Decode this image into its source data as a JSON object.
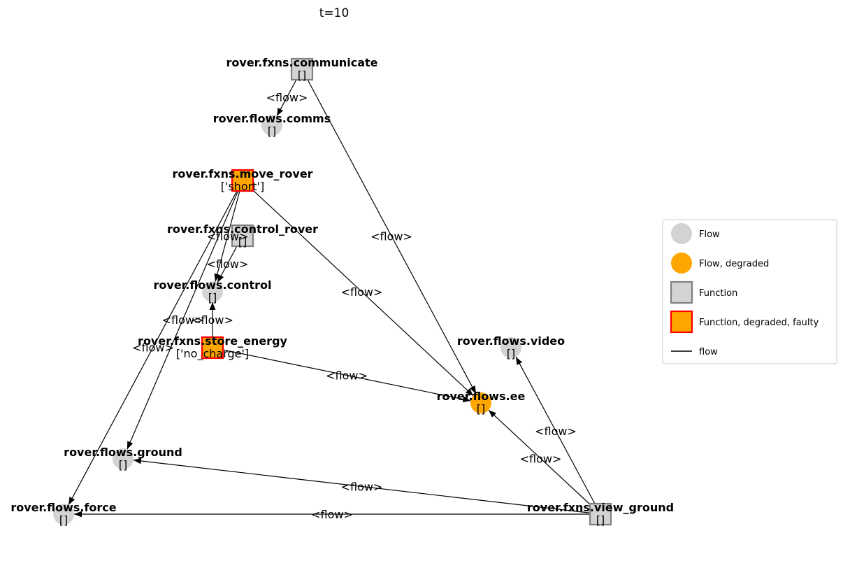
{
  "title": "t=10",
  "legend": {
    "position": "right",
    "items": [
      {
        "id": "flow",
        "label": "Flow",
        "shape": "circle",
        "fill": "#d3d3d3",
        "stroke": "none"
      },
      {
        "id": "flow-degraded",
        "label": "Flow, degraded",
        "shape": "circle",
        "fill": "#ffa500",
        "stroke": "none"
      },
      {
        "id": "function",
        "label": "Function",
        "shape": "square",
        "fill": "#d3d3d3",
        "stroke": "#808080"
      },
      {
        "id": "function-degraded-faulty",
        "label": "Function, degraded, faulty",
        "shape": "square",
        "fill": "#ffa500",
        "stroke": "#ff0000"
      },
      {
        "id": "flow-edge",
        "label": "flow",
        "shape": "line",
        "fill": "none",
        "stroke": "#000000"
      }
    ]
  },
  "nodes": [
    {
      "id": "communicate",
      "label": "rover.fxns.communicate",
      "state": "[]",
      "kind": "function",
      "status": "nominal"
    },
    {
      "id": "comms",
      "label": "rover.flows.comms",
      "state": "[]",
      "kind": "flow",
      "status": "nominal"
    },
    {
      "id": "move_rover",
      "label": "rover.fxns.move_rover",
      "state": "['short']",
      "kind": "function",
      "status": "faulty"
    },
    {
      "id": "control_rover",
      "label": "rover.fxns.control_rover",
      "state": "[]",
      "kind": "function",
      "status": "nominal"
    },
    {
      "id": "control",
      "label": "rover.flows.control",
      "state": "[]",
      "kind": "flow",
      "status": "nominal"
    },
    {
      "id": "store_energy",
      "label": "rover.fxns.store_energy",
      "state": "['no_charge']",
      "kind": "function",
      "status": "faulty"
    },
    {
      "id": "video",
      "label": "rover.flows.video",
      "state": "[]",
      "kind": "flow",
      "status": "nominal"
    },
    {
      "id": "ee",
      "label": "rover.flows.ee",
      "state": "[]",
      "kind": "flow",
      "status": "degraded"
    },
    {
      "id": "ground",
      "label": "rover.flows.ground",
      "state": "[]",
      "kind": "flow",
      "status": "nominal"
    },
    {
      "id": "force",
      "label": "rover.flows.force",
      "state": "[]",
      "kind": "flow",
      "status": "nominal"
    },
    {
      "id": "view_ground",
      "label": "rover.fxns.view_ground",
      "state": "[]",
      "kind": "function",
      "status": "nominal"
    }
  ],
  "edges": [
    {
      "from": "communicate",
      "to": "comms",
      "label": "<flow>"
    },
    {
      "from": "communicate",
      "to": "ee",
      "label": "<flow>"
    },
    {
      "from": "move_rover",
      "to": "control",
      "label": "<flow>"
    },
    {
      "from": "move_rover",
      "to": "ee",
      "label": "<flow>"
    },
    {
      "from": "move_rover",
      "to": "ground",
      "label": "<flow>"
    },
    {
      "from": "move_rover",
      "to": "force",
      "label": "<flow>"
    },
    {
      "from": "control_rover",
      "to": "control",
      "label": "<flow>"
    },
    {
      "from": "store_energy",
      "to": "control",
      "label": "<flow>"
    },
    {
      "from": "store_energy",
      "to": "ee",
      "label": "<flow>"
    },
    {
      "from": "view_ground",
      "to": "video",
      "label": "<flow>"
    },
    {
      "from": "view_ground",
      "to": "ee",
      "label": "<flow>"
    },
    {
      "from": "view_ground",
      "to": "ground",
      "label": "<flow>"
    },
    {
      "from": "view_ground",
      "to": "force",
      "label": "<flow>"
    }
  ],
  "colors": {
    "flow_nominal": "#d3d3d3",
    "flow_degraded": "#ffa500",
    "function_nominal_fill": "#d3d3d3",
    "function_nominal_border": "#808080",
    "function_faulty_fill": "#ffa500",
    "function_faulty_border": "#ff0000",
    "edge": "#000000",
    "legend_border": "#cccccc"
  }
}
